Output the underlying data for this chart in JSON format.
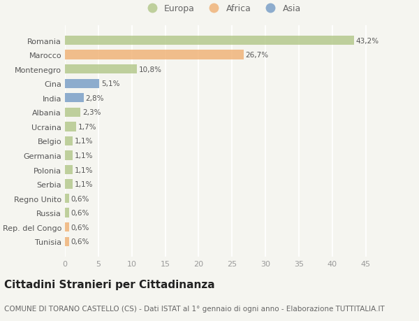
{
  "categories": [
    "Romania",
    "Marocco",
    "Montenegro",
    "Cina",
    "India",
    "Albania",
    "Ucraina",
    "Belgio",
    "Germania",
    "Polonia",
    "Serbia",
    "Regno Unito",
    "Russia",
    "Rep. del Congo",
    "Tunisia"
  ],
  "values": [
    43.2,
    26.7,
    10.8,
    5.1,
    2.8,
    2.3,
    1.7,
    1.1,
    1.1,
    1.1,
    1.1,
    0.6,
    0.6,
    0.6,
    0.6
  ],
  "labels": [
    "43,2%",
    "26,7%",
    "10,8%",
    "5,1%",
    "2,8%",
    "2,3%",
    "1,7%",
    "1,1%",
    "1,1%",
    "1,1%",
    "1,1%",
    "0,6%",
    "0,6%",
    "0,6%",
    "0,6%"
  ],
  "colors": [
    "#b5c98e",
    "#f0b47a",
    "#b5c98e",
    "#7b9fc7",
    "#7b9fc7",
    "#b5c98e",
    "#b5c98e",
    "#b5c98e",
    "#b5c98e",
    "#b5c98e",
    "#b5c98e",
    "#b5c98e",
    "#b5c98e",
    "#f0b47a",
    "#f0b47a"
  ],
  "legend_labels": [
    "Europa",
    "Africa",
    "Asia"
  ],
  "legend_colors": [
    "#b5c98e",
    "#f0b47a",
    "#7b9fc7"
  ],
  "xlim": [
    0,
    47
  ],
  "xticks": [
    0,
    5,
    10,
    15,
    20,
    25,
    30,
    35,
    40,
    45
  ],
  "title": "Cittadini Stranieri per Cittadinanza",
  "subtitle": "COMUNE DI TORANO CASTELLO (CS) - Dati ISTAT al 1° gennaio di ogni anno - Elaborazione TUTTITALIA.IT",
  "bg_color": "#f5f5f0",
  "bar_height": 0.65,
  "title_fontsize": 11,
  "subtitle_fontsize": 7.5,
  "label_fontsize": 7.5,
  "tick_fontsize": 8,
  "legend_fontsize": 9
}
